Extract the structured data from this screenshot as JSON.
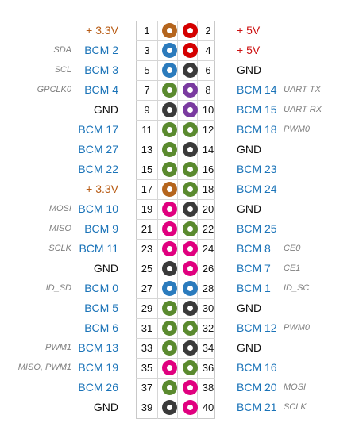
{
  "title": "",
  "colors": {
    "power_3v3": "#b5651d",
    "power_5v": "#d40000",
    "ground": "#3a3a3a",
    "gpio": "#5a8a2e",
    "i2c": "#2b7bbd",
    "uart": "#7a3aa0",
    "spi": "#e0007f",
    "text_gpio": "#1a73b8",
    "text_3v3": "#b85c15",
    "text_5v": "#cc1010",
    "text_gnd": "#111111",
    "text_alt": "#808080"
  },
  "rows": [
    {
      "left": {
        "alt": "",
        "name": "+ 3.3V",
        "num": "1",
        "type": "power_3v3"
      },
      "right": {
        "num": "2",
        "name": "+ 5V",
        "alt": "",
        "type": "power_5v"
      }
    },
    {
      "left": {
        "alt": "SDA",
        "name": "BCM 2",
        "num": "3",
        "type": "i2c"
      },
      "right": {
        "num": "4",
        "name": "+ 5V",
        "alt": "",
        "type": "power_5v"
      }
    },
    {
      "left": {
        "alt": "SCL",
        "name": "BCM 3",
        "num": "5",
        "type": "i2c"
      },
      "right": {
        "num": "6",
        "name": "GND",
        "alt": "",
        "type": "ground"
      }
    },
    {
      "left": {
        "alt": "GPCLK0",
        "name": "BCM 4",
        "num": "7",
        "type": "gpio"
      },
      "right": {
        "num": "8",
        "name": "BCM 14",
        "alt": "UART TX",
        "type": "uart"
      }
    },
    {
      "left": {
        "alt": "",
        "name": "GND",
        "num": "9",
        "type": "ground"
      },
      "right": {
        "num": "10",
        "name": "BCM 15",
        "alt": "UART RX",
        "type": "uart"
      }
    },
    {
      "left": {
        "alt": "",
        "name": "BCM 17",
        "num": "11",
        "type": "gpio"
      },
      "right": {
        "num": "12",
        "name": "BCM 18",
        "alt": "PWM0",
        "type": "gpio"
      }
    },
    {
      "left": {
        "alt": "",
        "name": "BCM 27",
        "num": "13",
        "type": "gpio"
      },
      "right": {
        "num": "14",
        "name": "GND",
        "alt": "",
        "type": "ground"
      }
    },
    {
      "left": {
        "alt": "",
        "name": "BCM 22",
        "num": "15",
        "type": "gpio"
      },
      "right": {
        "num": "16",
        "name": "BCM 23",
        "alt": "",
        "type": "gpio"
      }
    },
    {
      "left": {
        "alt": "",
        "name": "+ 3.3V",
        "num": "17",
        "type": "power_3v3"
      },
      "right": {
        "num": "18",
        "name": "BCM 24",
        "alt": "",
        "type": "gpio"
      }
    },
    {
      "left": {
        "alt": "MOSI",
        "name": "BCM 10",
        "num": "19",
        "type": "spi"
      },
      "right": {
        "num": "20",
        "name": "GND",
        "alt": "",
        "type": "ground"
      }
    },
    {
      "left": {
        "alt": "MISO",
        "name": "BCM 9",
        "num": "21",
        "type": "spi"
      },
      "right": {
        "num": "22",
        "name": "BCM 25",
        "alt": "",
        "type": "gpio"
      }
    },
    {
      "left": {
        "alt": "SCLK",
        "name": "BCM 11",
        "num": "23",
        "type": "spi"
      },
      "right": {
        "num": "24",
        "name": "BCM 8",
        "alt": "CE0",
        "type": "spi"
      }
    },
    {
      "left": {
        "alt": "",
        "name": "GND",
        "num": "25",
        "type": "ground"
      },
      "right": {
        "num": "26",
        "name": "BCM 7",
        "alt": "CE1",
        "type": "spi"
      }
    },
    {
      "left": {
        "alt": "ID_SD",
        "name": "BCM 0",
        "num": "27",
        "type": "i2c"
      },
      "right": {
        "num": "28",
        "name": "BCM 1",
        "alt": "ID_SC",
        "type": "i2c"
      }
    },
    {
      "left": {
        "alt": "",
        "name": "BCM 5",
        "num": "29",
        "type": "gpio"
      },
      "right": {
        "num": "30",
        "name": "GND",
        "alt": "",
        "type": "ground"
      }
    },
    {
      "left": {
        "alt": "",
        "name": "BCM 6",
        "num": "31",
        "type": "gpio"
      },
      "right": {
        "num": "32",
        "name": "BCM 12",
        "alt": "PWM0",
        "type": "gpio"
      }
    },
    {
      "left": {
        "alt": "PWM1",
        "name": "BCM 13",
        "num": "33",
        "type": "gpio"
      },
      "right": {
        "num": "34",
        "name": "GND",
        "alt": "",
        "type": "ground"
      }
    },
    {
      "left": {
        "alt": "MISO, PWM1",
        "name": "BCM 19",
        "num": "35",
        "type": "spi"
      },
      "right": {
        "num": "36",
        "name": "BCM 16",
        "alt": "",
        "type": "gpio"
      }
    },
    {
      "left": {
        "alt": "",
        "name": "BCM 26",
        "num": "37",
        "type": "gpio"
      },
      "right": {
        "num": "38",
        "name": "BCM 20",
        "alt": "MOSI",
        "type": "spi"
      }
    },
    {
      "left": {
        "alt": "",
        "name": "GND",
        "num": "39",
        "type": "ground"
      },
      "right": {
        "num": "40",
        "name": "BCM 21",
        "alt": "SCLK",
        "type": "spi"
      }
    }
  ]
}
